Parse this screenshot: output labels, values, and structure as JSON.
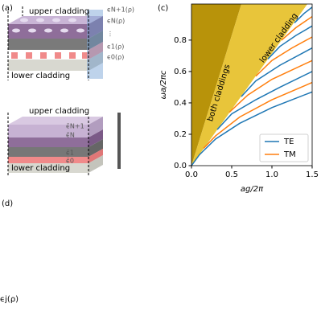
{
  "panel_labels": [
    "(a)",
    "(c)",
    "(d)"
  ],
  "panel_a": {
    "top": {
      "upper": "upper cladding",
      "lower": "lower cladding",
      "eps": [
        "ϵN+1(ρ)",
        "ϵN(ρ)",
        "⋮",
        "ϵ1(ρ)",
        "ϵ0(ρ)"
      ]
    },
    "bottom": {
      "upper": "upper cladding",
      "lower": "lower cladding",
      "eps": [
        "ϵ̄N+1",
        "ϵ̄N",
        "ϵ̄1",
        "ϵ̄0"
      ]
    }
  },
  "footer_text": "ϵj(ρ)",
  "chart_data": {
    "type": "line",
    "x_label": "ag/2π",
    "y_label": "ωa/2πc",
    "xlim": [
      0,
      1.5
    ],
    "ylim": [
      0,
      1.03
    ],
    "xticks": [
      {
        "value": 0,
        "label": "0.0"
      },
      {
        "value": 0.5,
        "label": "0.5"
      },
      {
        "value": 1,
        "label": "1.0"
      },
      {
        "value": 1.5,
        "label": "1.5"
      }
    ],
    "yticks": [
      {
        "value": 0,
        "label": "0.0"
      },
      {
        "value": 0.2,
        "label": "0.2"
      },
      {
        "value": 0.4,
        "label": "0.4"
      },
      {
        "value": 0.6,
        "label": "0.6"
      },
      {
        "value": 0.8,
        "label": "0.8"
      }
    ],
    "light_lines": [
      {
        "label": "both claddings",
        "slope": 1.66,
        "color": "#b8930a"
      },
      {
        "label": "lower cladding",
        "slope": 0.715,
        "color": "#e8c53a"
      }
    ],
    "legend": "lower right",
    "series": [
      {
        "name": "TE",
        "color": "#1f77b4",
        "lines": [
          {
            "x": [
              0,
              0.1,
              0.3,
              0.6,
              1.0,
              1.5
            ],
            "values": [
              0,
              0.07,
              0.17,
              0.27,
              0.37,
              0.47
            ]
          },
          {
            "x": [
              0.32,
              0.5,
              0.8,
              1.1,
              1.5
            ],
            "values": [
              0.23,
              0.33,
              0.42,
              0.5,
              0.6
            ]
          },
          {
            "x": [
              0.62,
              0.8,
              1.1,
              1.5
            ],
            "values": [
              0.44,
              0.54,
              0.64,
              0.75
            ]
          },
          {
            "x": [
              0.95,
              1.1,
              1.3,
              1.5
            ],
            "values": [
              0.68,
              0.76,
              0.83,
              0.89
            ]
          },
          {
            "x": [
              1.28,
              1.4,
              1.5
            ],
            "values": [
              0.91,
              0.97,
              1.01
            ]
          }
        ]
      },
      {
        "name": "TM",
        "color": "#ff7f0e",
        "lines": [
          {
            "x": [
              0.15,
              0.3,
              0.6,
              1.0,
              1.5
            ],
            "values": [
              0.11,
              0.19,
              0.31,
              0.42,
              0.53
            ]
          },
          {
            "x": [
              0.47,
              0.7,
              1.0,
              1.5
            ],
            "values": [
              0.34,
              0.45,
              0.55,
              0.67
            ]
          },
          {
            "x": [
              0.8,
              1.0,
              1.25,
              1.5
            ],
            "values": [
              0.57,
              0.67,
              0.75,
              0.82
            ]
          },
          {
            "x": [
              1.12,
              1.3,
              1.5
            ],
            "values": [
              0.8,
              0.88,
              0.95
            ]
          }
        ]
      }
    ]
  }
}
